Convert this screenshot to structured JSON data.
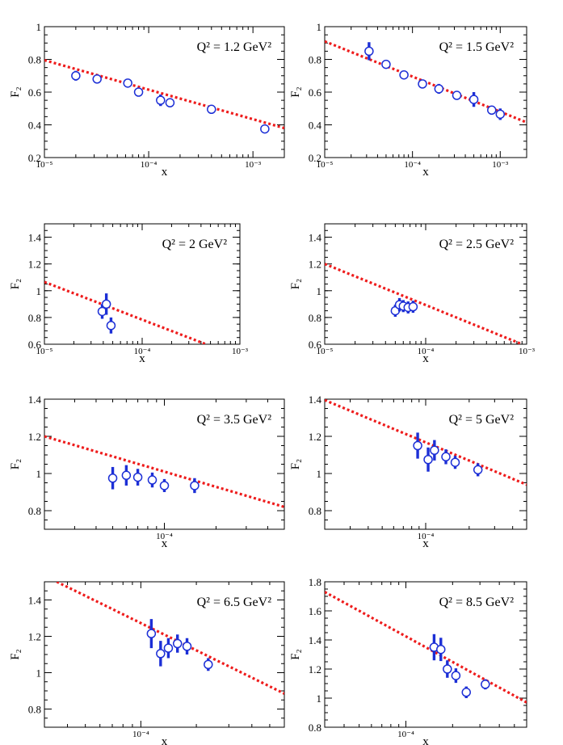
{
  "figure": {
    "colors": {
      "theory": "#ee1c1c",
      "data": "#1c2fd6",
      "frame": "#000000"
    },
    "panel_titles": [
      "Q² = 1.2 GeV²",
      "Q² = 1.5 GeV²",
      "Q² = 2 GeV²",
      "Q² = 2.5 GeV²",
      "Q² = 3.5 GeV²",
      "Q² = 5 GeV²",
      "Q² = 6.5 GeV²",
      "Q² = 8.5 GeV²"
    ]
  },
  "chart_data": [
    {
      "type": "scatter",
      "title": "Q² = 1.2 GeV²",
      "xlabel": "x",
      "ylabel": "F₂",
      "xscale": "log",
      "xlim": [
        1e-05,
        0.002
      ],
      "ylim": [
        0.2,
        1.0
      ],
      "yticks": [
        0.2,
        0.4,
        0.6,
        0.8,
        1.0
      ],
      "yticklabels": [
        "0.2",
        "0.4",
        "0.6",
        "0.8",
        "1"
      ],
      "xticks": [
        1e-05,
        0.0001,
        0.001
      ],
      "xticklabels": [
        "10⁻⁵",
        "10⁻⁴",
        "10⁻³"
      ],
      "series": [
        {
          "name": "data",
          "x": [
            2e-05,
            3.2e-05,
            6.3e-05,
            8e-05,
            0.00013,
            0.00016,
            0.0004,
            0.0013
          ],
          "y": [
            0.7,
            0.68,
            0.655,
            0.6,
            0.55,
            0.535,
            0.495,
            0.375
          ],
          "err": [
            0.03,
            0.025,
            0.015,
            0.02,
            0.035,
            0.015,
            0.02,
            0.015
          ]
        },
        {
          "name": "theory",
          "line": [
            [
              1e-05,
              0.795
            ],
            [
              0.002,
              0.38
            ]
          ]
        }
      ]
    },
    {
      "type": "scatter",
      "title": "Q² = 1.5 GeV²",
      "xlabel": "x",
      "ylabel": "F₂",
      "xscale": "log",
      "xlim": [
        1e-05,
        0.002
      ],
      "ylim": [
        0.2,
        1.0
      ],
      "yticks": [
        0.2,
        0.4,
        0.6,
        0.8,
        1.0
      ],
      "yticklabels": [
        "0.2",
        "0.4",
        "0.6",
        "0.8",
        "1"
      ],
      "xticks": [
        1e-05,
        0.0001,
        0.001
      ],
      "xticklabels": [
        "10⁻⁵",
        "10⁻⁴",
        "10⁻³"
      ],
      "series": [
        {
          "name": "data",
          "x": [
            3.2e-05,
            5e-05,
            8e-05,
            0.00013,
            0.0002,
            0.00032,
            0.0005,
            0.0008,
            0.001
          ],
          "y": [
            0.85,
            0.77,
            0.705,
            0.65,
            0.62,
            0.58,
            0.555,
            0.49,
            0.465
          ],
          "err": [
            0.055,
            0.025,
            0.02,
            0.025,
            0.03,
            0.025,
            0.045,
            0.015,
            0.035
          ]
        },
        {
          "name": "theory",
          "line": [
            [
              1e-05,
              0.91
            ],
            [
              0.002,
              0.415
            ]
          ]
        }
      ]
    },
    {
      "type": "scatter",
      "title": "Q² = 2 GeV²",
      "xlabel": "x",
      "ylabel": "F₂",
      "xscale": "log",
      "xlim": [
        1e-05,
        0.001
      ],
      "ylim": [
        0.6,
        1.5
      ],
      "yticks": [
        0.6,
        0.8,
        1.0,
        1.2,
        1.4
      ],
      "yticklabels": [
        "0.6",
        "0.8",
        "1",
        "1.2",
        "1.4"
      ],
      "xticks": [
        1e-05,
        0.0001,
        0.001
      ],
      "xticklabels": [
        "10⁻⁵",
        "10⁻⁴",
        "10⁻³"
      ],
      "series": [
        {
          "name": "data",
          "x": [
            3.9e-05,
            4.3e-05,
            4.8e-05
          ],
          "y": [
            0.845,
            0.9,
            0.74
          ],
          "err": [
            0.055,
            0.08,
            0.06
          ]
        },
        {
          "name": "theory",
          "line": [
            [
              1e-05,
              1.065
            ],
            [
              0.00045,
              0.6
            ]
          ]
        }
      ]
    },
    {
      "type": "scatter",
      "title": "Q² = 2.5 GeV²",
      "xlabel": "x",
      "ylabel": "F₂",
      "xscale": "log",
      "xlim": [
        1e-05,
        0.001
      ],
      "ylim": [
        0.6,
        1.5
      ],
      "yticks": [
        0.6,
        0.8,
        1.0,
        1.2,
        1.4
      ],
      "yticklabels": [
        "0.6",
        "0.8",
        "1",
        "1.2",
        "1.4"
      ],
      "xticks": [
        1e-05,
        0.0001,
        0.001
      ],
      "xticklabels": [
        "10⁻⁵",
        "10⁻⁴",
        "10⁻³"
      ],
      "series": [
        {
          "name": "data",
          "x": [
            5e-05,
            5.5e-05,
            6e-05,
            6.7e-05,
            7.5e-05
          ],
          "y": [
            0.85,
            0.895,
            0.885,
            0.875,
            0.88
          ],
          "err": [
            0.045,
            0.05,
            0.045,
            0.045,
            0.045
          ]
        },
        {
          "name": "theory",
          "line": [
            [
              1e-05,
              1.2
            ],
            [
              0.0009,
              0.6
            ]
          ]
        }
      ]
    },
    {
      "type": "scatter",
      "title": "Q² = 3.5 GeV²",
      "xlabel": "x",
      "ylabel": "F₂",
      "xscale": "log",
      "xlim": [
        2e-05,
        0.0005
      ],
      "ylim": [
        0.7,
        1.4
      ],
      "yticks": [
        0.8,
        1.0,
        1.2,
        1.4
      ],
      "yticklabels": [
        "0.8",
        "1",
        "1.2",
        "1.4"
      ],
      "xticks": [
        0.0001
      ],
      "xticklabels": [
        "10⁻⁴"
      ],
      "series": [
        {
          "name": "data",
          "x": [
            5e-05,
            6e-05,
            7e-05,
            8.5e-05,
            0.0001,
            0.00015
          ],
          "y": [
            0.975,
            0.99,
            0.98,
            0.965,
            0.935,
            0.935
          ],
          "err": [
            0.06,
            0.055,
            0.045,
            0.04,
            0.035,
            0.04
          ]
        },
        {
          "name": "theory",
          "line": [
            [
              2e-05,
              1.2
            ],
            [
              0.0005,
              0.82
            ]
          ]
        }
      ]
    },
    {
      "type": "scatter",
      "title": "Q² = 5 GeV²",
      "xlabel": "x",
      "ylabel": "F₂",
      "xscale": "log",
      "xlim": [
        2e-05,
        0.0005
      ],
      "ylim": [
        0.7,
        1.4
      ],
      "yticks": [
        0.8,
        1.0,
        1.2,
        1.4
      ],
      "yticklabels": [
        "0.8",
        "1",
        "1.2",
        "1.4"
      ],
      "xticks": [
        0.0001
      ],
      "xticklabels": [
        "10⁻⁴"
      ],
      "series": [
        {
          "name": "data",
          "x": [
            8.8e-05,
            0.000104,
            0.000115,
            0.000138,
            0.00016,
            0.00023
          ],
          "y": [
            1.15,
            1.075,
            1.125,
            1.09,
            1.06,
            1.02
          ],
          "err": [
            0.07,
            0.065,
            0.055,
            0.04,
            0.035,
            0.035
          ]
        },
        {
          "name": "theory",
          "line": [
            [
              2e-05,
              1.395
            ],
            [
              0.0005,
              0.94
            ]
          ]
        }
      ]
    },
    {
      "type": "scatter",
      "title": "Q² = 6.5 GeV²",
      "xlabel": "x",
      "ylabel": "F₂",
      "xscale": "log",
      "xlim": [
        3e-05,
        0.0006
      ],
      "ylim": [
        0.7,
        1.5
      ],
      "yticks": [
        0.8,
        1.0,
        1.2,
        1.4
      ],
      "yticklabels": [
        "0.8",
        "1",
        "1.2",
        "1.4"
      ],
      "xticks": [
        0.0001
      ],
      "xticklabels": [
        "10⁻⁴"
      ],
      "series": [
        {
          "name": "data",
          "x": [
            0.000114,
            0.000128,
            0.000141,
            0.000158,
            0.000178,
            0.000232
          ],
          "y": [
            1.215,
            1.105,
            1.135,
            1.16,
            1.145,
            1.045
          ],
          "err": [
            0.08,
            0.07,
            0.055,
            0.05,
            0.045,
            0.035
          ]
        },
        {
          "name": "theory",
          "line": [
            [
              3.5e-05,
              1.5
            ],
            [
              0.0006,
              0.885
            ]
          ]
        }
      ]
    },
    {
      "type": "scatter",
      "title": "Q² = 8.5 GeV²",
      "xlabel": "x",
      "ylabel": "F₂",
      "xscale": "log",
      "xlim": [
        3e-05,
        0.0006
      ],
      "ylim": [
        0.8,
        1.8
      ],
      "yticks": [
        0.8,
        1.0,
        1.2,
        1.4,
        1.6,
        1.8
      ],
      "yticklabels": [
        "0.8",
        "1",
        "1.2",
        "1.4",
        "1.6",
        "1.8"
      ],
      "xticks": [
        0.0001
      ],
      "xticklabels": [
        "10⁻⁴"
      ],
      "series": [
        {
          "name": "data",
          "x": [
            0.000152,
            0.000168,
            0.000185,
            0.00021,
            0.000245,
            0.000325
          ],
          "y": [
            1.35,
            1.335,
            1.2,
            1.155,
            1.04,
            1.095
          ],
          "err": [
            0.09,
            0.08,
            0.06,
            0.05,
            0.04,
            0.035
          ]
        },
        {
          "name": "theory",
          "line": [
            [
              3e-05,
              1.73
            ],
            [
              0.0006,
              0.97
            ]
          ]
        }
      ]
    }
  ]
}
